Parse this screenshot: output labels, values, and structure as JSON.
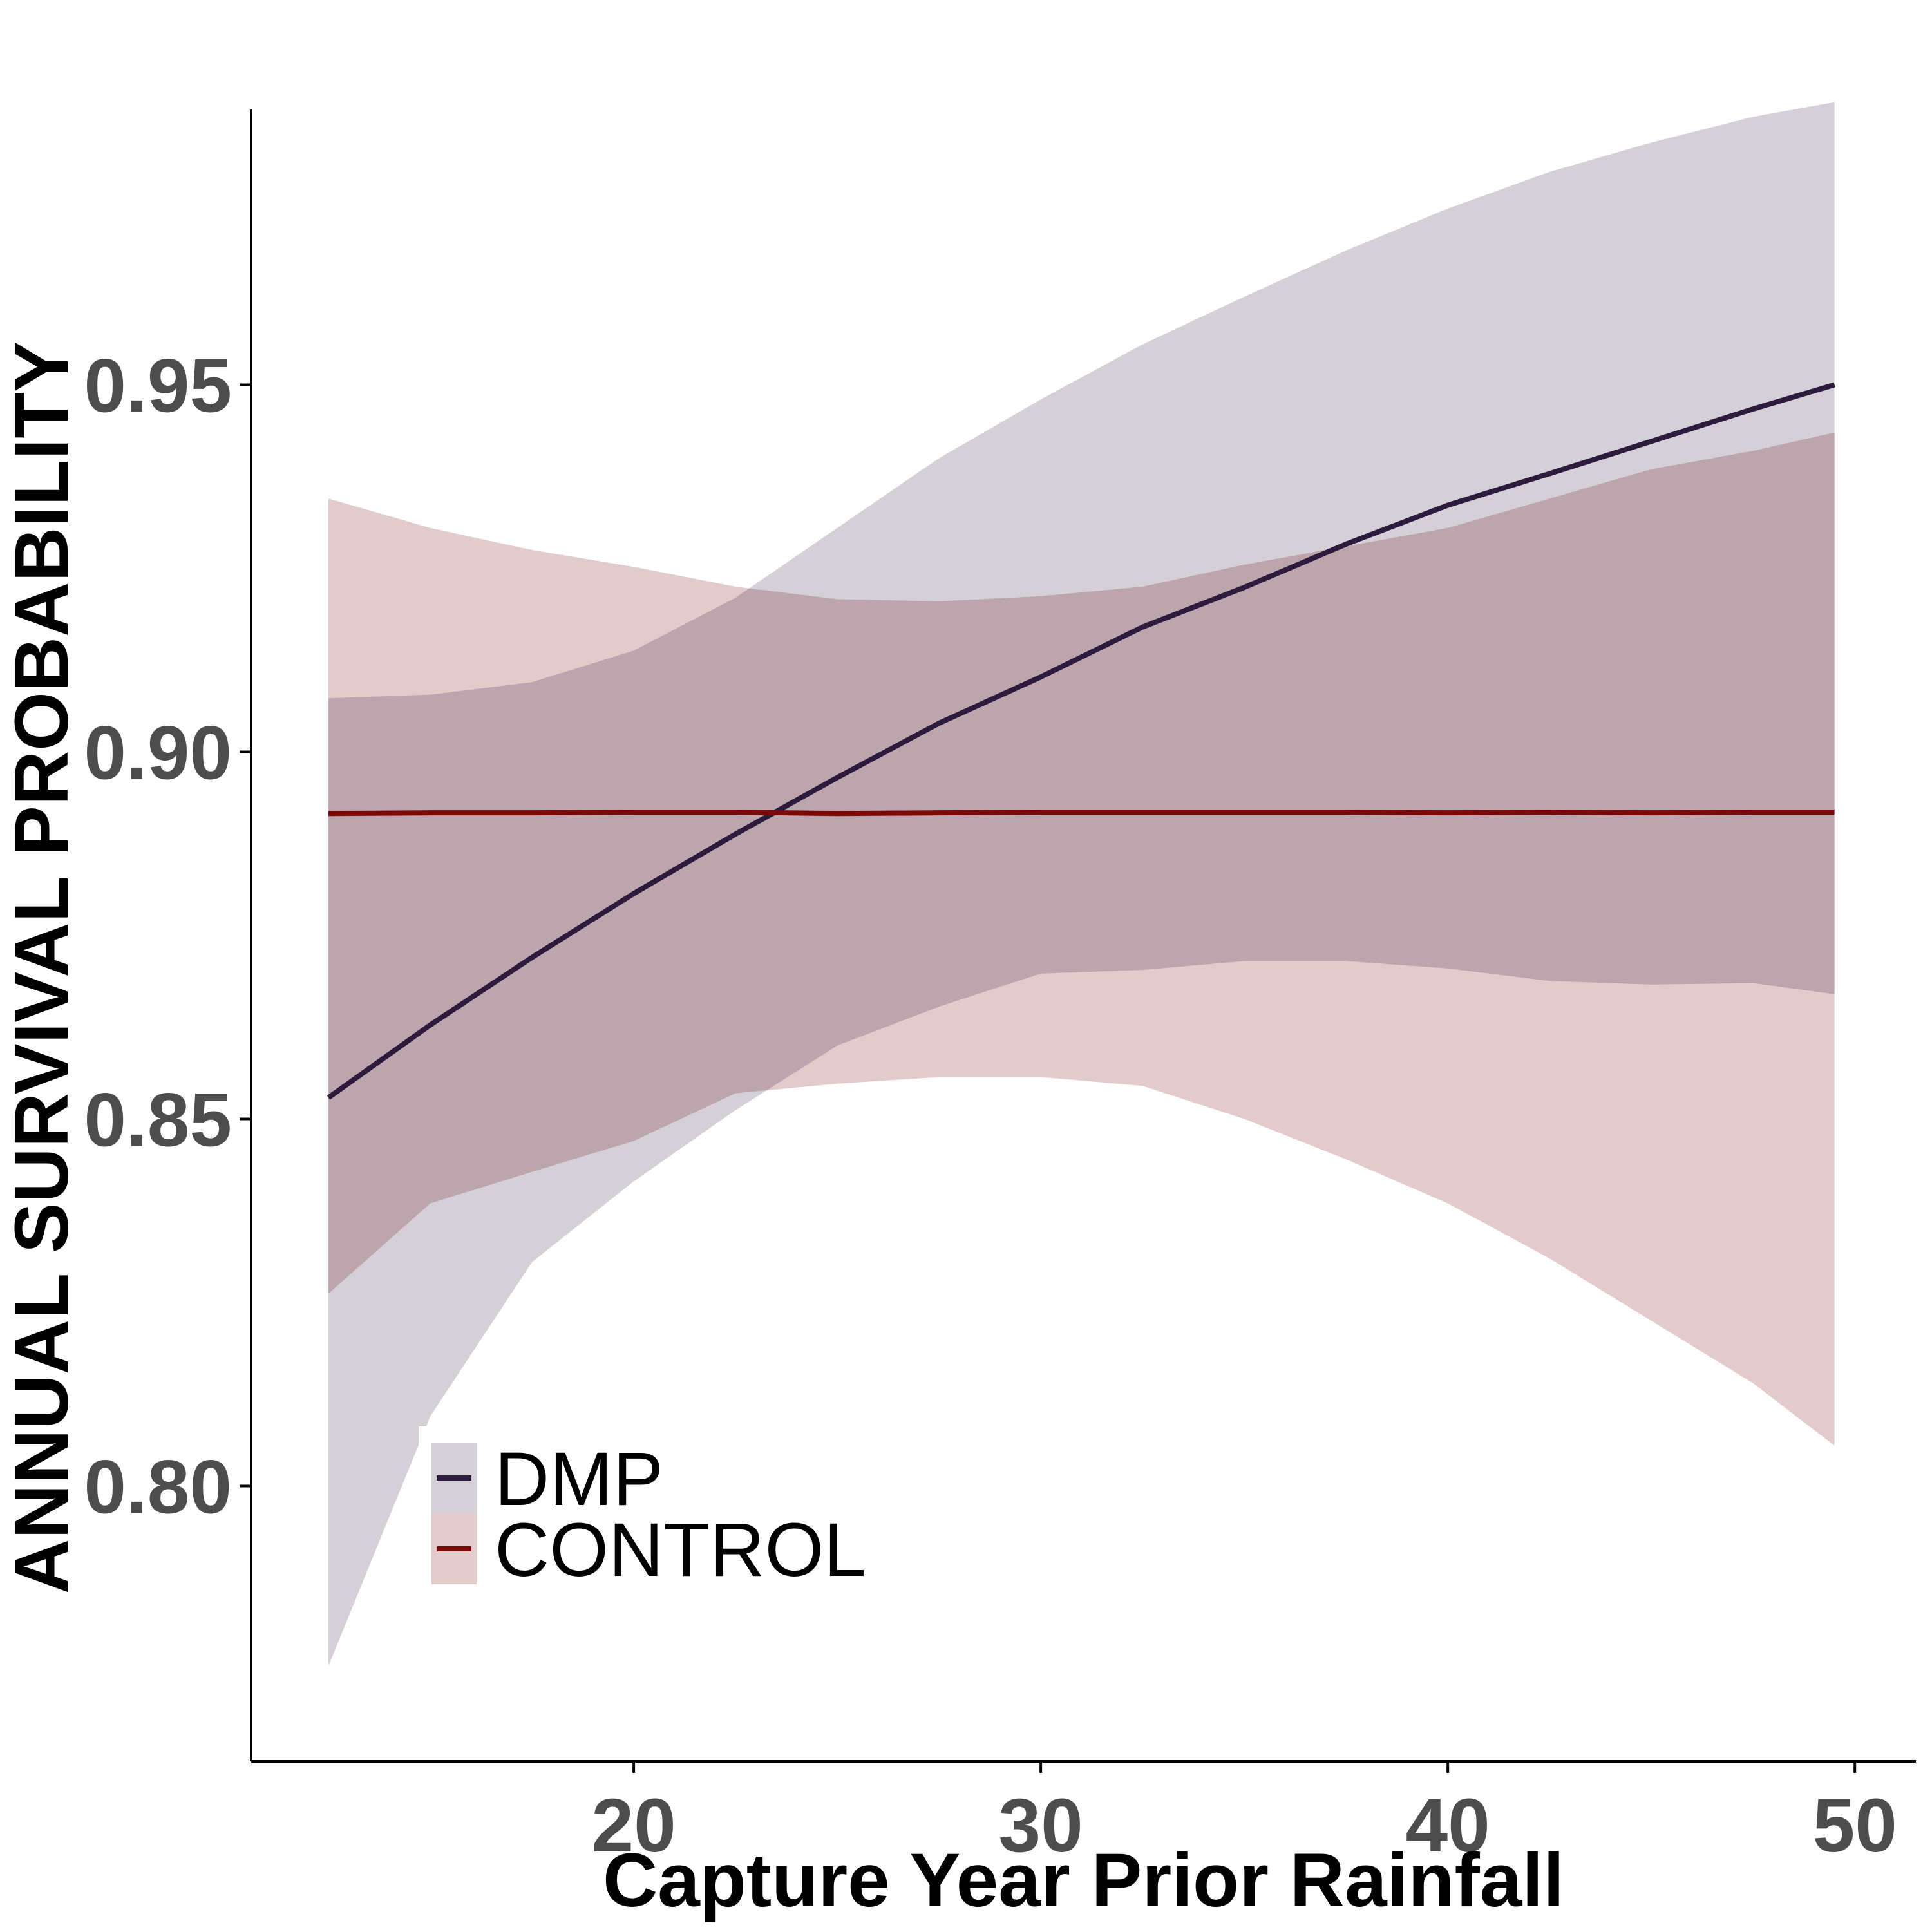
{
  "chart_data": {
    "type": "line",
    "title": "",
    "xlabel": "Capture Year Prior Rainfall",
    "ylabel": "ANNUAL SURVIVAL PROBABILITY",
    "xlim": [
      10.6,
      51.5
    ],
    "ylim": [
      0.7625,
      0.9875
    ],
    "x_ticks": [
      20,
      30,
      40,
      50
    ],
    "x_tick_labels": [
      "20",
      "30",
      "40",
      "50"
    ],
    "y_ticks": [
      0.8,
      0.85,
      0.9,
      0.95
    ],
    "y_tick_labels": [
      "0.80",
      "0.85",
      "0.90",
      "0.95"
    ],
    "grid": false,
    "legend_position": "bottom-left",
    "x": [
      12.5,
      15,
      17.5,
      20,
      22.5,
      25,
      27.5,
      30,
      32.5,
      35,
      37.5,
      40,
      42.5,
      45,
      47.5,
      49.5
    ],
    "series": [
      {
        "name": "DMP",
        "color": "#2d1b3d",
        "band_color": "#d5d0d8",
        "values": [
          0.8529,
          0.8628,
          0.872,
          0.8807,
          0.8888,
          0.8965,
          0.9039,
          0.9102,
          0.917,
          0.9224,
          0.9283,
          0.9336,
          0.9379,
          0.9423,
          0.9467,
          0.95
        ],
        "lower": [
          0.7755,
          0.8095,
          0.8305,
          0.8415,
          0.8512,
          0.86,
          0.8653,
          0.8698,
          0.8703,
          0.8715,
          0.8715,
          0.8705,
          0.8688,
          0.8683,
          0.8685,
          0.867
        ],
        "upper": [
          0.9073,
          0.9078,
          0.9095,
          0.9138,
          0.921,
          0.9305,
          0.94,
          0.948,
          0.9555,
          0.962,
          0.9683,
          0.974,
          0.979,
          0.983,
          0.9865,
          0.9885
        ]
      },
      {
        "name": "CONTROL",
        "color": "#7a0a0a",
        "band_color": "#e3cbcc",
        "values": [
          0.8916,
          0.8917,
          0.8917,
          0.8918,
          0.8918,
          0.8916,
          0.8917,
          0.8918,
          0.8918,
          0.8918,
          0.8918,
          0.8917,
          0.8918,
          0.8917,
          0.8918,
          0.8918
        ],
        "lower": [
          0.8262,
          0.8385,
          0.8428,
          0.847,
          0.8535,
          0.8548,
          0.8557,
          0.8557,
          0.8545,
          0.85,
          0.8445,
          0.8385,
          0.831,
          0.8225,
          0.814,
          0.8055
        ],
        "upper": [
          0.9345,
          0.9305,
          0.9275,
          0.9252,
          0.9225,
          0.9208,
          0.9205,
          0.9212,
          0.9225,
          0.9255,
          0.928,
          0.9305,
          0.9345,
          0.9385,
          0.941,
          0.9435
        ]
      }
    ]
  },
  "colors": {
    "overlap_band": "#c2a7ae",
    "axis": "#000000",
    "tick_label": "#4d4d4d"
  }
}
